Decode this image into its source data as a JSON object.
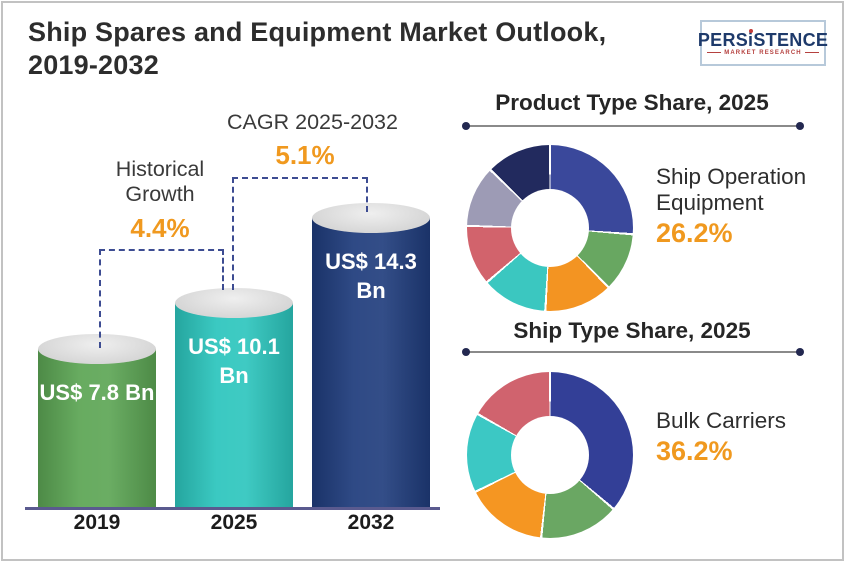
{
  "header": {
    "title_line1": "Ship Spares and Equipment Market Outlook,",
    "title_line2": "2019-2032"
  },
  "logo": {
    "brand_pre": "PERS",
    "brand_i": "i",
    "brand_post": "STENCE",
    "tagline": "MARKET RESEARCH"
  },
  "palette": {
    "accent_orange": "#F0991F",
    "dash_blue": "#3D4C92",
    "axis": "#5A5A8F",
    "heading_text": "#262626",
    "logo_navy": "#1E3A6B",
    "logo_red": "#B5413F"
  },
  "chart_data": [
    {
      "type": "bar",
      "title": "Ship Spares and Equipment Market Outlook, 2019-2032",
      "categories": [
        "2019",
        "2025",
        "2032"
      ],
      "values": [
        7.8,
        10.1,
        14.3
      ],
      "unit": "US$ Bn",
      "bar_labels": [
        "US$ 7.8 Bn",
        "US$ 10.1 Bn",
        "US$ 14.3 Bn"
      ],
      "bar_colors": [
        "#5CA554",
        "#2CC5BD",
        "#1F3C7C"
      ],
      "xlabel": "",
      "ylabel": "",
      "grid": false,
      "bar_style": "cylinder",
      "annotations": [
        {
          "label": "Historical Growth",
          "value": "4.4%",
          "span": [
            "2019",
            "2025"
          ]
        },
        {
          "label": "CAGR 2025-2032",
          "value": "5.1%",
          "span": [
            "2025",
            "2032"
          ]
        }
      ]
    },
    {
      "type": "pie",
      "donut": true,
      "title": "Product Type Share, 2025",
      "start_angle": "top",
      "direction": "clockwise",
      "callout": {
        "label": "Ship Operation Equipment",
        "value": "26.2%"
      },
      "segments": [
        {
          "name": "Ship Operation Equipment",
          "value": 26.2,
          "color": "#3A489B"
        },
        {
          "name": "",
          "value": 11.4,
          "color": "#68A761"
        },
        {
          "name": "",
          "value": 13.3,
          "color": "#F39422"
        },
        {
          "name": "",
          "value": 12.8,
          "color": "#3BC7C0"
        },
        {
          "name": "",
          "value": 11.7,
          "color": "#D2636C"
        },
        {
          "name": "",
          "value": 11.9,
          "color": "#9D9BB5"
        },
        {
          "name": "",
          "value": 12.7,
          "color": "#222A5E"
        }
      ]
    },
    {
      "type": "pie",
      "donut": true,
      "title": "Ship Type Share, 2025",
      "start_angle": "top",
      "direction": "clockwise",
      "callout": {
        "label": "Bulk Carriers",
        "value": "36.2%"
      },
      "segments": [
        {
          "name": "Bulk Carriers",
          "value": 36.2,
          "color": "#333F97"
        },
        {
          "name": "",
          "value": 15.5,
          "color": "#6AA763"
        },
        {
          "name": "",
          "value": 16.0,
          "color": "#F59622"
        },
        {
          "name": "",
          "value": 15.5,
          "color": "#3CC8C4"
        },
        {
          "name": "",
          "value": 16.8,
          "color": "#D0636E"
        }
      ]
    }
  ]
}
